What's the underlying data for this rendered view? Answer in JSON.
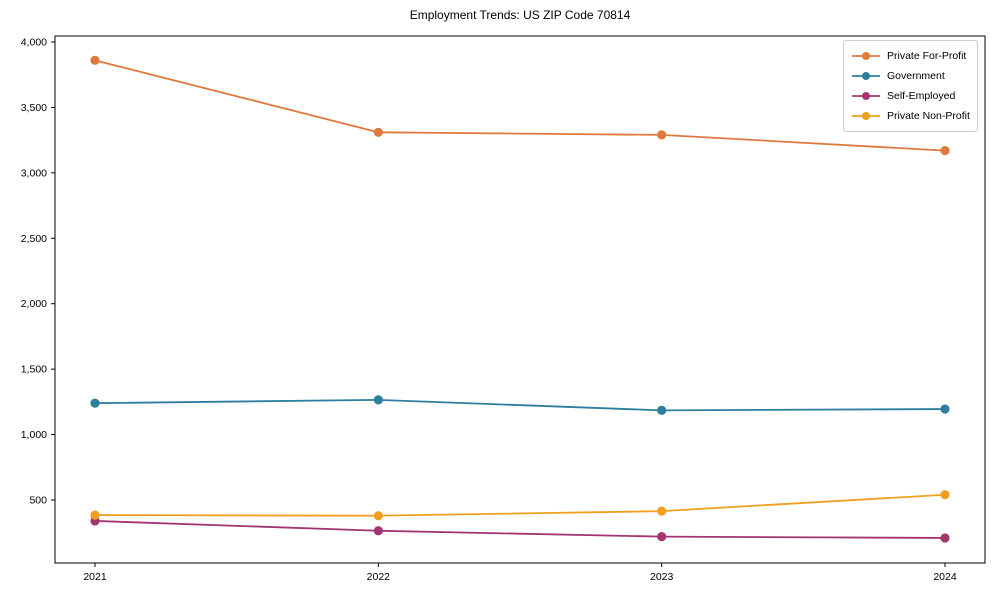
{
  "chart_data": {
    "type": "line",
    "title": "Employment Trends: US ZIP Code 70814",
    "categories": [
      "2021",
      "2022",
      "2023",
      "2024"
    ],
    "series": [
      {
        "name": "Private For-Profit",
        "color": "#e0793e",
        "values": [
          3860,
          3310,
          3290,
          3170
        ]
      },
      {
        "name": "Government",
        "color": "#2d7f9e",
        "values": [
          1240,
          1265,
          1185,
          1195
        ]
      },
      {
        "name": "Self-Employed",
        "color": "#a23572",
        "values": [
          340,
          265,
          220,
          210
        ]
      },
      {
        "name": "Private Non-Profit",
        "color": "#efa020",
        "values": [
          385,
          380,
          415,
          540
        ]
      }
    ],
    "xlabel": "",
    "ylabel": "",
    "ylim": [
      20,
      4050
    ],
    "yticks": [
      500,
      1000,
      1500,
      2000,
      2500,
      3000,
      3500,
      4000
    ],
    "ytick_labels": [
      "500",
      "1,000",
      "1,500",
      "2,000",
      "2,500",
      "3,000",
      "3,500",
      "4,000"
    ],
    "grid": false,
    "legend_position": "upper right",
    "marker": "circle",
    "axis_color": "#000000",
    "text_color": "#000000"
  }
}
